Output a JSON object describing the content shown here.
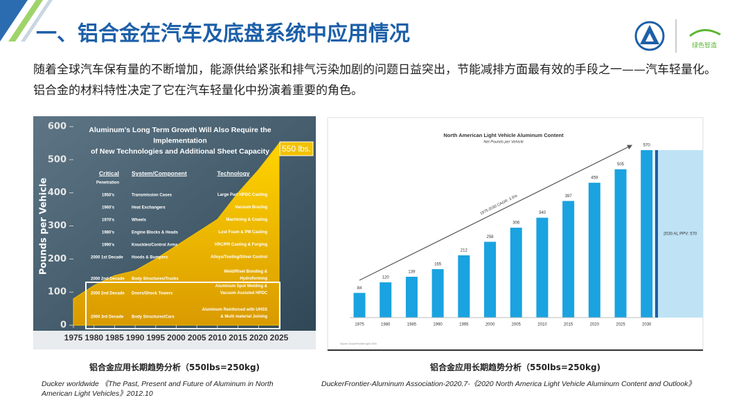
{
  "header": {
    "title": "一、铝合金在汽车及底盘系统中应用情况",
    "logo_text": "绿色智造"
  },
  "intro": "随着全球汽车保有量的不断增加，能源供给紧张和排气污染加剧的问题日益突出，节能减排方面最有效的手段之一——汽车轻量化。铝合金的材料特性决定了它在汽车轻量化中扮演着重要的角色。",
  "chart_data": [
    {
      "type": "area",
      "title": [
        "Aluminum's Long Term Growth Will Also Require the",
        "Implementation",
        "of New Technologies and Additional Sheet Capacity"
      ],
      "annotation": "550 lbs.",
      "ylabel": "Pounds per Vehicle",
      "color": "#f2c200",
      "x": [
        1975,
        1980,
        1985,
        1990,
        1995,
        2000,
        2005,
        2010,
        2015,
        2020,
        2025
      ],
      "values": [
        80,
        120,
        150,
        165,
        200,
        240,
        280,
        320,
        400,
        470,
        550
      ],
      "xlim": [
        1975,
        2025
      ],
      "ylim": [
        0,
        600
      ],
      "xticks": [
        1975,
        1980,
        1985,
        1990,
        1995,
        2000,
        2005,
        2010,
        2015,
        2020,
        2025
      ],
      "yticks": [
        0,
        100,
        200,
        300,
        400,
        500,
        600
      ],
      "table": {
        "headers": [
          "Critical",
          "System/Component",
          "Technology"
        ],
        "header_note": "Penetration",
        "rows": [
          [
            "1950's",
            "Transmission Cases",
            "Large Part HPDC Casting"
          ],
          [
            "1960's",
            "Heat Exchangers",
            "Vacuum Brazing"
          ],
          [
            "1970's",
            "Wheels",
            "Machining & Coating"
          ],
          [
            "1980's",
            "Engine Blocks & Heads",
            "Lost Foam & PM Casting"
          ],
          [
            "1990's",
            "Knuckles/Control Arms",
            "VRC/PR Casting & Forging"
          ],
          [
            "2000 1st Decade",
            "Hoods & Bumpers",
            "Alloys/Tooling/Silver Control"
          ],
          [
            "2000 2nd Decade",
            "Body Structures/Trucks",
            "Weld/Rivet Bonding & Hydroforming"
          ],
          [
            "2000 2nd Decade",
            "Doors/Shock Towers",
            "Aluminum Spot Welding & Vacuum Assisted HPDC"
          ],
          [
            "2000 3rd Decade",
            "Body Structures/Cars",
            "Aluminum Reinforced with UHSS & Multi material Joining"
          ]
        ]
      },
      "caption": "铝合金应用长期趋势分析（550lbs=250kg)",
      "source": "Ducker worldwide 《The Past, Present and Future of Aluminum in North American Light Vehicles》2012.10"
    },
    {
      "type": "bar",
      "title": "North American Light Vehicle Aluminum Content",
      "subtitle": "Net Pounds per Vehicle",
      "color": "#1aa3e0",
      "categories": [
        "1975",
        "1980",
        "1985",
        "1990",
        "1995",
        "2000",
        "2005",
        "2010",
        "2015",
        "2020",
        "2025",
        "2030"
      ],
      "values": [
        84,
        120,
        139,
        165,
        212,
        258,
        306,
        340,
        397,
        459,
        505,
        570
      ],
      "annotation": "1975-2030 CAGR: 3.5%",
      "forecast_label": "2030 AL PPV: 570",
      "source_note": "Source: DuckerFrontier April 2020",
      "caption": "铝合金应用长期趋势分析（550lbs=250kg)",
      "source": "DuckerFrontier-Aluminum Association-2020.7-《2020 North America Light Vehicle Aluminum Content and Outlook》"
    }
  ]
}
